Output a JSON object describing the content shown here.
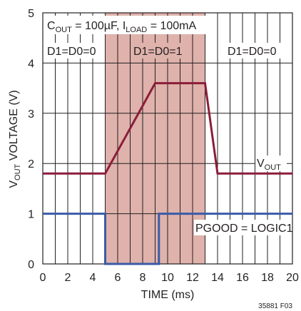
{
  "chart_data": {
    "type": "line",
    "xlabel": "TIME (ms)",
    "ylabel": {
      "prefix": "V",
      "sub": "OUT",
      "suffix": " VOLTAGE (V)"
    },
    "xlim": [
      0,
      20
    ],
    "ylim": [
      0,
      5
    ],
    "x_ticks": [
      0,
      2,
      4,
      6,
      8,
      10,
      12,
      14,
      16,
      18,
      20
    ],
    "y_ticks": [
      0,
      1,
      2,
      3,
      4,
      5
    ],
    "grid": true,
    "shaded_region": {
      "x_start": 5,
      "x_end": 13,
      "color": "#dfb2ab"
    },
    "series": [
      {
        "key": "vout",
        "color": "#8b1d3a",
        "points": [
          [
            0,
            1.8
          ],
          [
            5,
            1.8
          ],
          [
            9,
            3.6
          ],
          [
            13,
            3.6
          ],
          [
            14,
            1.8
          ],
          [
            20,
            1.8
          ]
        ]
      },
      {
        "key": "pgood",
        "color": "#3a5ba8",
        "points": [
          [
            0,
            1
          ],
          [
            5,
            1
          ],
          [
            5,
            0
          ],
          [
            9.3,
            0
          ],
          [
            9.3,
            1
          ],
          [
            20,
            1
          ]
        ]
      }
    ],
    "annotations": {
      "conditions": {
        "c": "C",
        "c_sub": "OUT",
        "c_rest": " = 100µF, I",
        "i_sub": "LOAD",
        "i_rest": " = 100mA"
      },
      "region_left": "D1=D0=0",
      "region_mid": "D1=D0=1",
      "region_right": "D1=D0=0",
      "vout_label": {
        "v": "V",
        "sub": "OUT"
      },
      "pgood_label": "PGOOD = LOGIC1"
    },
    "figure_id": "35881 F03"
  }
}
